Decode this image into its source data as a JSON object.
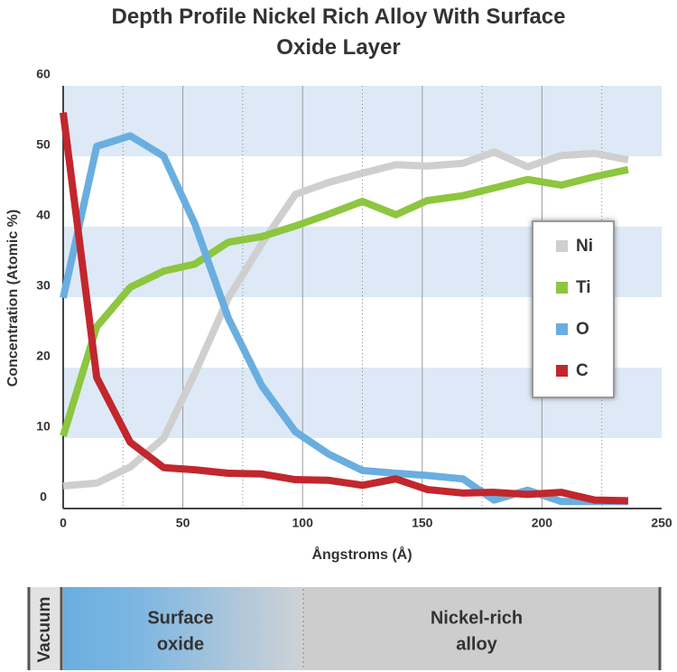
{
  "chart_data": {
    "type": "line",
    "title": "Depth Profile Nickel Rich Alloy With Surface Oxide Layer",
    "x_label": "Ångstroms (Å)",
    "y_label": "Concentration (Atomic %)",
    "x": [
      0,
      14,
      28,
      42,
      55,
      69,
      83,
      97,
      111,
      125,
      139,
      152,
      167,
      180,
      194,
      208,
      222,
      236
    ],
    "series": [
      {
        "name": "Ni",
        "color": "#cfcfcf",
        "values": [
          3.2,
          3.6,
          5.9,
          10,
          19.2,
          29.9,
          37.6,
          44.6,
          46.3,
          47.6,
          48.8,
          48.6,
          49,
          50.6,
          48.5,
          50.1,
          50.4,
          49.5
        ]
      },
      {
        "name": "Ti",
        "color": "#8dc63f",
        "values": [
          10.3,
          25.8,
          31.4,
          33.7,
          34.7,
          37.8,
          38.6,
          40.1,
          41.8,
          43.6,
          41.7,
          43.7,
          44.4,
          45.5,
          46.7,
          45.9,
          47.1,
          48.1
        ]
      },
      {
        "name": "O",
        "color": "#6aaee0",
        "values": [
          29.9,
          51.4,
          52.9,
          50,
          40.4,
          27,
          17.4,
          10.9,
          7.7,
          5.4,
          5,
          4.7,
          4.2,
          1.2,
          2.6,
          1,
          1,
          1
        ]
      },
      {
        "name": "C",
        "color": "#c1272d",
        "values": [
          56.2,
          18.6,
          9.4,
          5.8,
          5.5,
          5,
          4.9,
          4.1,
          4,
          3.3,
          4.2,
          2.7,
          2.2,
          2.3,
          2,
          2.3,
          1.2,
          1.1
        ]
      }
    ],
    "xlim": [
      0,
      250
    ],
    "xticks": [
      0,
      50,
      100,
      150,
      200,
      250
    ],
    "ylim": [
      0,
      60
    ],
    "yticks": [
      0,
      10,
      20,
      30,
      40,
      50,
      60
    ],
    "grid": true,
    "band_color": "#dde9f6",
    "legend": "center right"
  },
  "regions": {
    "vacuum": "Vacuum",
    "surface_oxide": [
      "Surface",
      "oxide"
    ],
    "alloy": [
      "Nickel-rich",
      "alloy"
    ]
  }
}
